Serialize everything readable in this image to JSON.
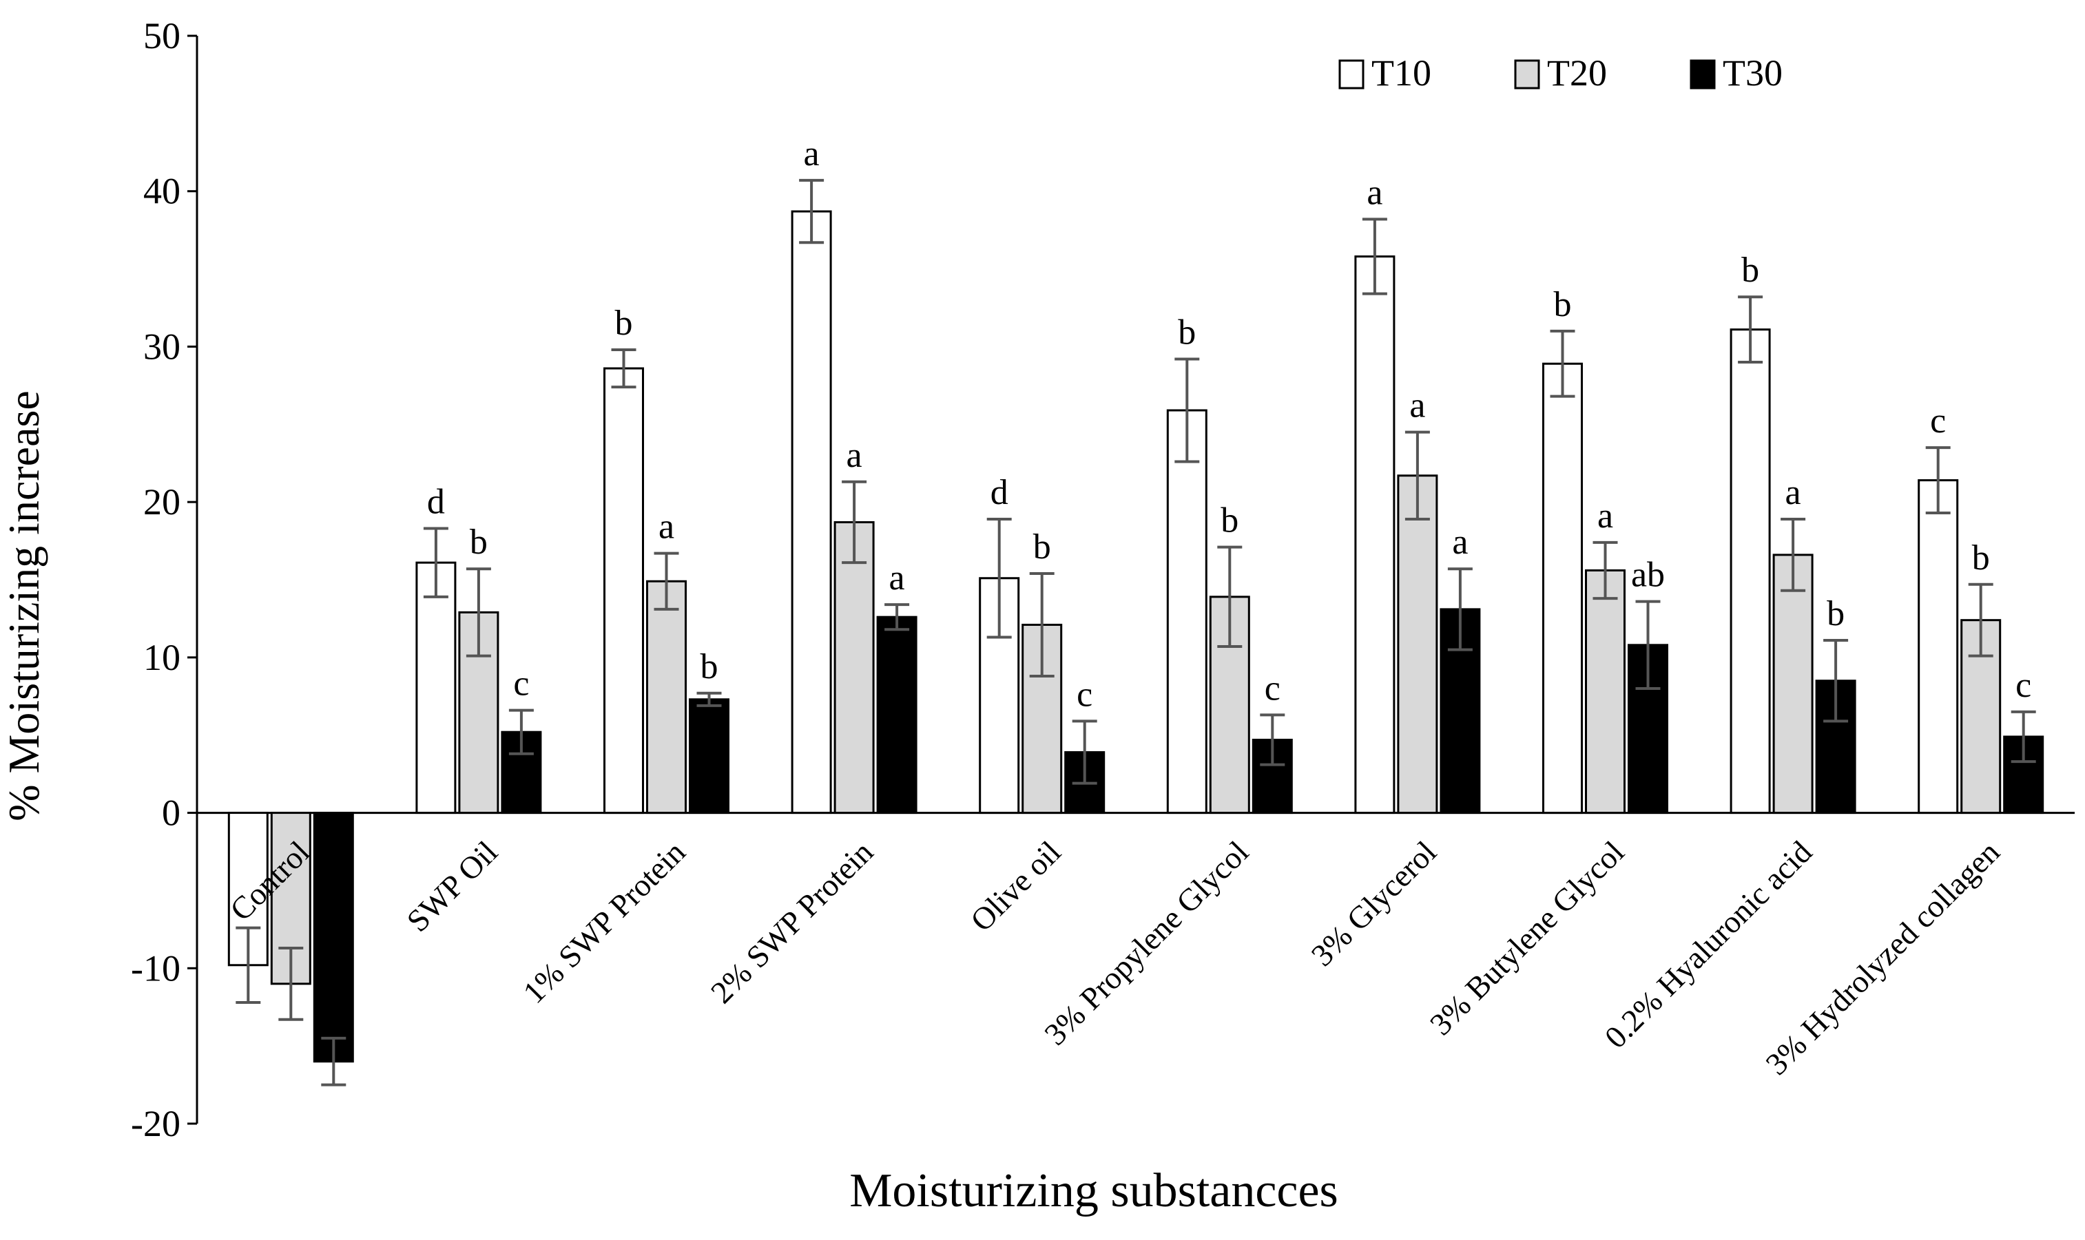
{
  "chart_data": {
    "type": "bar",
    "title": "",
    "xlabel": "Moisturizing substancces",
    "ylabel": "% Moisturizing increase",
    "ylim": [
      -20,
      50
    ],
    "yticks": [
      -20,
      -10,
      0,
      10,
      20,
      30,
      40,
      50
    ],
    "grid": false,
    "legend_position": "top-right",
    "categories": [
      "Control",
      "SWP Oil",
      "1% SWP Protein",
      "2% SWP Protein",
      "Olive oil",
      "3% Propylene Glycol",
      "3% Glycerol",
      "3% Butylene Glycol",
      "0.2% Hyaluronic acid",
      "3% Hydrolyzed collagen"
    ],
    "series": [
      {
        "name": "T10",
        "color": "#ffffff",
        "values": [
          -9.8,
          16.1,
          28.6,
          38.7,
          15.1,
          25.9,
          35.8,
          28.9,
          31.1,
          21.4
        ],
        "errors": [
          2.4,
          2.2,
          1.2,
          2.0,
          3.8,
          3.3,
          2.4,
          2.1,
          2.1,
          2.1
        ],
        "labels": [
          "",
          "d",
          "b",
          "a",
          "d",
          "b",
          "a",
          "b",
          "b",
          "c"
        ]
      },
      {
        "name": "T20",
        "color": "#d9d9d9",
        "values": [
          -11.0,
          12.9,
          14.9,
          18.7,
          12.1,
          13.9,
          21.7,
          15.6,
          16.6,
          12.4
        ],
        "errors": [
          2.3,
          2.8,
          1.8,
          2.6,
          3.3,
          3.2,
          2.8,
          1.8,
          2.3,
          2.3
        ],
        "labels": [
          "",
          "b",
          "a",
          "a",
          "b",
          "b",
          "a",
          "a",
          "a",
          "b"
        ]
      },
      {
        "name": "T30",
        "color": "#000000",
        "values": [
          -16.0,
          5.2,
          7.3,
          12.6,
          3.9,
          4.7,
          13.1,
          10.8,
          8.5,
          4.9
        ],
        "errors": [
          1.5,
          1.4,
          0.4,
          0.8,
          2.0,
          1.6,
          2.6,
          2.8,
          2.6,
          1.6
        ],
        "labels": [
          "",
          "c",
          "b",
          "a",
          "c",
          "c",
          "a",
          "ab",
          "b",
          "c"
        ]
      }
    ]
  }
}
